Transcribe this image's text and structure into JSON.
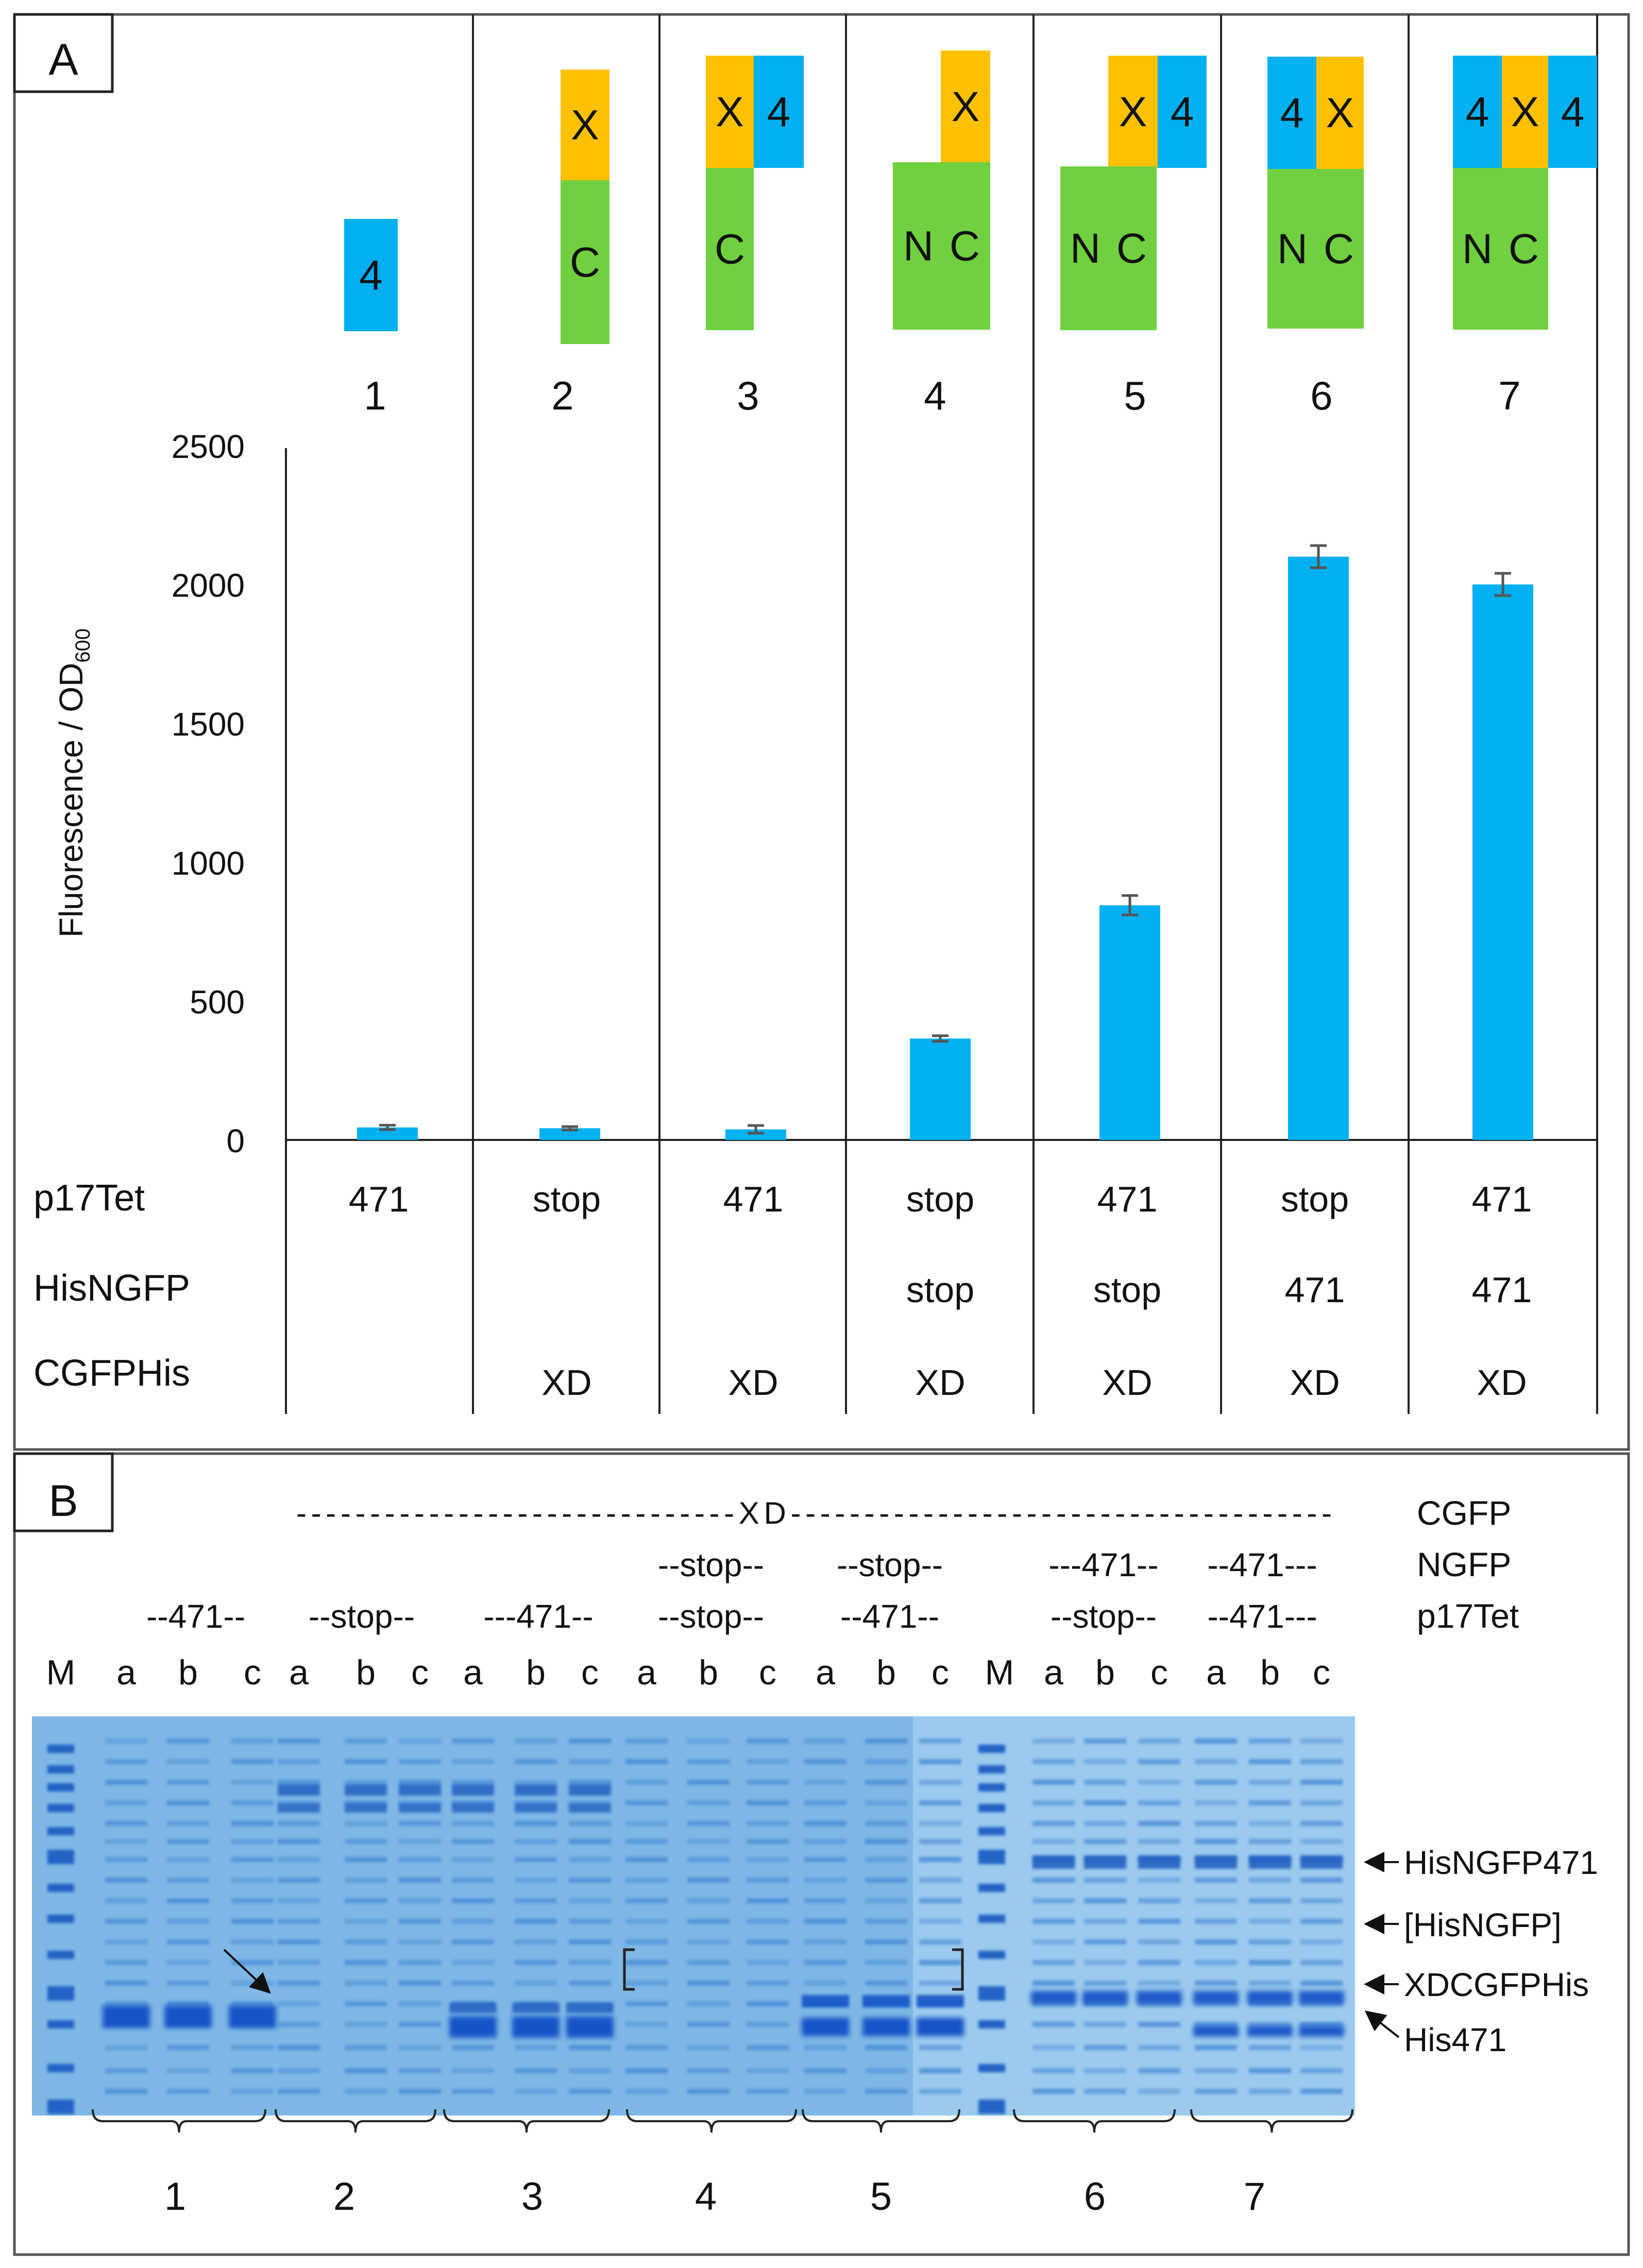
{
  "panel_a": {
    "label": "A",
    "construct_numbers": [
      "1",
      "2",
      "3",
      "4",
      "5",
      "6",
      "7"
    ],
    "constructs": [
      [
        {
          "text": "4",
          "color": "blue"
        }
      ],
      [
        {
          "text": "X",
          "color": "orange"
        },
        {
          "text": "C",
          "color": "green"
        }
      ],
      [
        {
          "text": "X",
          "color": "orange"
        },
        {
          "text": "4",
          "color": "blue"
        },
        {
          "text": "C",
          "color": "green"
        }
      ],
      [
        {
          "text": "X",
          "color": "orange"
        },
        {
          "text": "N",
          "color": "green"
        },
        {
          "text": "C",
          "color": "green"
        }
      ],
      [
        {
          "text": "X",
          "color": "orange"
        },
        {
          "text": "4",
          "color": "blue"
        },
        {
          "text": "N",
          "color": "green"
        },
        {
          "text": "C",
          "color": "green"
        }
      ],
      [
        {
          "text": "4",
          "color": "blue"
        },
        {
          "text": "X",
          "color": "orange"
        },
        {
          "text": "N",
          "color": "green"
        },
        {
          "text": "C",
          "color": "green"
        }
      ],
      [
        {
          "text": "4",
          "color": "blue"
        },
        {
          "text": "X",
          "color": "orange"
        },
        {
          "text": "4",
          "color": "blue"
        },
        {
          "text": "N",
          "color": "green"
        },
        {
          "text": "C",
          "color": "green"
        }
      ]
    ],
    "row_labels": [
      "p17Tet",
      "HisNGFP",
      "CGFPHis"
    ],
    "rows": [
      [
        "471",
        "stop",
        "471",
        "stop",
        "471",
        "stop",
        "471"
      ],
      [
        "",
        "",
        "",
        "stop",
        "stop",
        "471",
        "471"
      ],
      [
        "",
        "XD",
        "XD",
        "XD",
        "XD",
        "XD",
        "XD"
      ]
    ]
  },
  "chart_data": {
    "type": "bar",
    "categories": [
      "1",
      "2",
      "3",
      "4",
      "5",
      "6",
      "7"
    ],
    "values": [
      45,
      42,
      38,
      365,
      845,
      2100,
      2000
    ],
    "errors": [
      8,
      6,
      14,
      10,
      35,
      40,
      40
    ],
    "ylabel": "Fluorescence / OD",
    "ylabel_sub": "600",
    "ylim": [
      0,
      2500
    ],
    "yticks": [
      "0",
      "500",
      "1000",
      "1500",
      "2000",
      "2500"
    ],
    "bar_color": "#00b0f0"
  },
  "colors": {
    "blue": "#00b0f0",
    "orange": "#ffc000",
    "green": "#70d040"
  },
  "panel_b": {
    "label": "B",
    "xd_line": "------------------------------XD-------------------------------------",
    "row_titles": [
      "CGFP",
      "NGFP",
      "p17Tet"
    ],
    "ngfp_groups": [
      "--stop--",
      "--stop--",
      "---471--",
      "--471---"
    ],
    "p17_groups": [
      "--471--",
      "--stop--",
      "---471--",
      "--stop--",
      "--471--",
      "--stop--",
      "--471---"
    ],
    "lane_letters": [
      "M",
      "a",
      "b",
      "c",
      "a",
      "b",
      "c",
      "a",
      "b",
      "c",
      "a",
      "b",
      "c",
      "a",
      "b",
      "c",
      "M",
      "a",
      "b",
      "c",
      "a",
      "b",
      "c"
    ],
    "bands": [
      "HisNGFP471",
      "[HisNGFP]",
      "XDCGFPHis",
      "His471"
    ],
    "group_numbers": [
      "1",
      "2",
      "3",
      "4",
      "5",
      "6",
      "7"
    ]
  }
}
